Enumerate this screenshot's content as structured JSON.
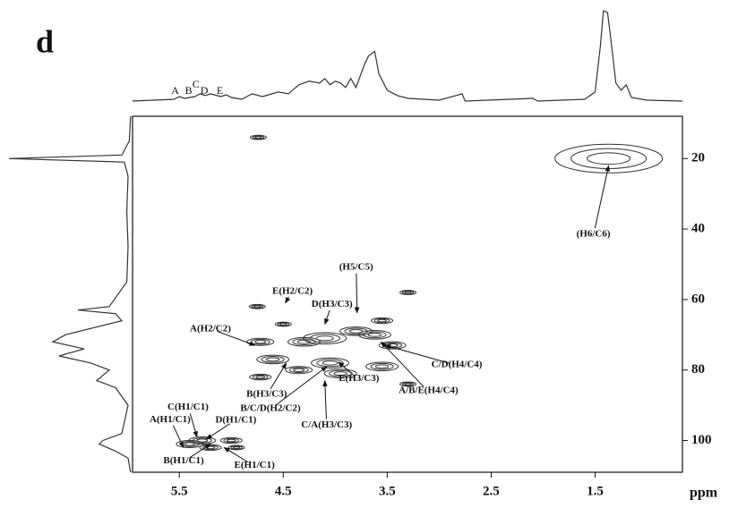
{
  "chart_data": {
    "type": "hsqc",
    "panel_label": "d",
    "x_label": "ppm",
    "color": "#333333",
    "xlim": [
      5.95,
      0.66
    ],
    "xticks": [
      5.5,
      4.5,
      3.5,
      2.5,
      1.5
    ],
    "ylim": [
      8,
      109
    ],
    "yticks": [
      20,
      40,
      60,
      80,
      100
    ],
    "peaks": {
      "x": [
        1.37,
        4.74,
        5.4,
        5.28,
        5.2,
        5.0,
        4.95,
        4.72,
        4.6,
        4.5,
        4.35,
        4.3,
        4.1,
        4.05,
        3.95,
        3.8,
        3.62,
        3.55,
        3.45,
        3.55,
        4.72,
        3.3,
        3.3,
        4.75
      ],
      "y": [
        20,
        14,
        101,
        100,
        102,
        100,
        102,
        72,
        77,
        67,
        80,
        72,
        71,
        78,
        81,
        69,
        70,
        79,
        73,
        66,
        82,
        58,
        84,
        62
      ],
      "intensity": [
        10,
        1.5,
        2.5,
        2.5,
        2,
        2,
        1.5,
        2.5,
        3,
        1.5,
        2.5,
        3,
        4,
        3.5,
        3,
        3,
        3,
        3,
        2.5,
        2,
        2,
        1.5,
        1.5,
        1.5
      ]
    },
    "projection_top": {
      "x": [
        5.95,
        5.55,
        5.5,
        5.45,
        5.35,
        5.3,
        5.25,
        5.2,
        5.1,
        5.05,
        5.0,
        4.9,
        4.8,
        4.7,
        4.55,
        4.45,
        4.35,
        4.25,
        4.15,
        4.1,
        4.05,
        4.0,
        3.95,
        3.9,
        3.85,
        3.8,
        3.72,
        3.68,
        3.62,
        3.58,
        3.5,
        3.4,
        3.3,
        3.0,
        2.78,
        2.75,
        2.1,
        2.05,
        1.6,
        1.5,
        1.45,
        1.42,
        1.38,
        1.35,
        1.3,
        1.25,
        1.2,
        1.15,
        1.0,
        0.66
      ],
      "values": [
        0,
        2,
        5,
        3,
        5,
        8,
        6,
        8,
        5,
        7,
        4,
        2,
        8,
        5,
        10,
        8,
        18,
        22,
        20,
        25,
        18,
        22,
        20,
        15,
        25,
        15,
        40,
        50,
        55,
        30,
        12,
        6,
        3,
        1,
        8,
        0,
        3,
        0,
        2,
        10,
        60,
        100,
        98,
        70,
        20,
        12,
        18,
        4,
        1,
        0
      ]
    },
    "projection_left": {
      "y": [
        8,
        15,
        19,
        20,
        21,
        25,
        35,
        45,
        55,
        62,
        63,
        64,
        66,
        70,
        72,
        74,
        76,
        78,
        80,
        83,
        85,
        90,
        98,
        100,
        101,
        103,
        105,
        109
      ],
      "values": [
        3,
        4,
        10,
        100,
        8,
        5,
        6,
        5,
        6,
        20,
        45,
        15,
        10,
        55,
        65,
        40,
        60,
        35,
        20,
        30,
        15,
        5,
        10,
        25,
        28,
        15,
        5,
        3
      ]
    },
    "top_labels": {
      "text": [
        "A",
        "B",
        "C",
        "D",
        "E"
      ],
      "x": [
        5.54,
        5.41,
        5.34,
        5.26,
        5.11
      ]
    },
    "annotations": [
      {
        "text": "(H6/C6)",
        "x": 1.37,
        "y": 22
      },
      {
        "text": "(H5/C5)",
        "x": 3.79,
        "y": 63.8
      },
      {
        "text": "E(H2/C2)",
        "x": 4.48,
        "y": 61
      },
      {
        "text": "D(H3/C3)",
        "x": 4.1,
        "y": 67
      },
      {
        "text": "A(H2/C2)",
        "x": 4.77,
        "y": 73
      },
      {
        "text": "C/D(H4/C4)",
        "x": 3.52,
        "y": 73
      },
      {
        "text": "A/B/E(H4/C4)",
        "x": 3.56,
        "y": 72
      },
      {
        "text": "E(H3/C3)",
        "x": 3.97,
        "y": 77.7
      },
      {
        "text": "B(H3/C3)",
        "x": 4.47,
        "y": 78
      },
      {
        "text": "B/C/D(H2/C2)",
        "x": 4.08,
        "y": 79
      },
      {
        "text": "C/A(H3/C3)",
        "x": 4.1,
        "y": 83
      },
      {
        "text": "C(H1/C1)",
        "x": 5.33,
        "y": 99
      },
      {
        "text": "A(H1/C1)",
        "x": 5.46,
        "y": 102
      },
      {
        "text": "D(H1/C1)",
        "x": 5.24,
        "y": 99.6
      },
      {
        "text": "B(H1/C1)",
        "x": 5.2,
        "y": 101
      },
      {
        "text": "E(H1/C1)",
        "x": 5.07,
        "y": 102
      }
    ]
  }
}
